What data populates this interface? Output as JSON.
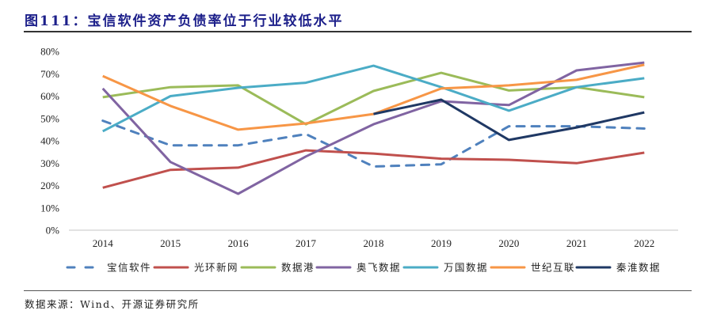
{
  "figure": {
    "title": "图111：宝信软件资产负债率位于行业较低水平",
    "source": "数据来源：Wind、开源证券研究所"
  },
  "chart_data": {
    "type": "line",
    "title": "宝信软件资产负债率位于行业较低水平",
    "xlabel": "",
    "ylabel": "",
    "x": [
      "2014",
      "2015",
      "2016",
      "2017",
      "2018",
      "2019",
      "2020",
      "2021",
      "2022"
    ],
    "ylim": [
      0,
      80
    ],
    "yticks": [
      "0%",
      "10%",
      "20%",
      "30%",
      "40%",
      "50%",
      "60%",
      "70%",
      "80%"
    ],
    "y_unit": "%",
    "grid": false,
    "legend_position": "bottom",
    "series": [
      {
        "name": "宝信软件",
        "color": "#4f81bd",
        "dashed": true,
        "values": [
          49,
          38,
          38,
          43,
          28.5,
          29.5,
          46.5,
          46.5,
          45.5
        ]
      },
      {
        "name": "光环新网",
        "color": "#c0504d",
        "dashed": false,
        "values": [
          19,
          27,
          28,
          35.7,
          34.3,
          32,
          31.5,
          30,
          34.7
        ]
      },
      {
        "name": "数据港",
        "color": "#9bbb59",
        "dashed": false,
        "values": [
          59.5,
          64,
          64.8,
          47.4,
          62.3,
          70.4,
          62.5,
          64,
          59.5
        ]
      },
      {
        "name": "奥飞数据",
        "color": "#8064a2",
        "dashed": false,
        "values": [
          63.4,
          30.5,
          16.3,
          33,
          47.4,
          57.7,
          56,
          71.5,
          75
        ]
      },
      {
        "name": "万国数据",
        "color": "#4bacc6",
        "dashed": false,
        "values": [
          44.3,
          60,
          63.7,
          66,
          73.6,
          64,
          53.5,
          64,
          68
        ]
      },
      {
        "name": "世纪互联",
        "color": "#f79646",
        "dashed": false,
        "values": [
          69,
          55.6,
          45,
          47.8,
          52,
          63.4,
          64.8,
          67.3,
          74
        ]
      },
      {
        "name": "秦淮数据",
        "color": "#1f3864",
        "dashed": false,
        "values": [
          null,
          null,
          null,
          null,
          52,
          58.4,
          40.4,
          46,
          52.7
        ]
      }
    ]
  }
}
